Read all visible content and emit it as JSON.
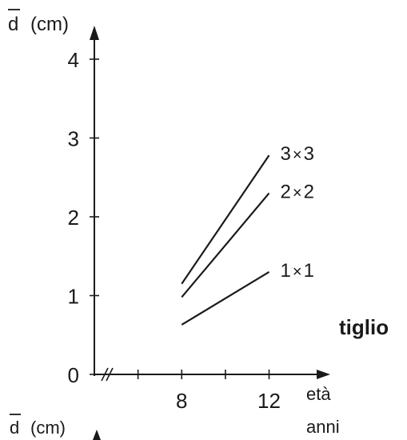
{
  "chart_data": {
    "type": "line",
    "title": "tiglio",
    "ylabel_top": {
      "symbol": "d",
      "unit": "(cm)"
    },
    "ylabel_bottom": {
      "symbol": "d",
      "unit": "(cm)"
    },
    "xlabel": [
      "età",
      "anni"
    ],
    "xticks": [
      "8",
      "12"
    ],
    "yticks": [
      "0",
      "1",
      "2",
      "3",
      "4"
    ],
    "xlim": [
      4,
      14.8
    ],
    "ylim": [
      0,
      4.5
    ],
    "x_axis_break": true,
    "series": [
      {
        "name": "3x3",
        "label": "3x3",
        "x": [
          8,
          12
        ],
        "y": [
          1.15,
          2.78
        ]
      },
      {
        "name": "2x2",
        "label": "2x2",
        "x": [
          8,
          12
        ],
        "y": [
          0.98,
          2.3
        ]
      },
      {
        "name": "1x1",
        "label": "1x1",
        "x": [
          8,
          12
        ],
        "y": [
          0.63,
          1.3
        ]
      }
    ]
  }
}
